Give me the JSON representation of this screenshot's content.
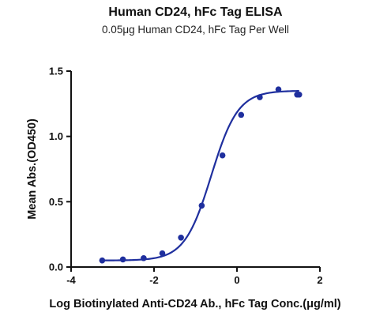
{
  "chart_data": {
    "type": "scatter",
    "title": "Human CD24, hFc Tag ELISA",
    "subtitle": "0.05μg Human CD24, hFc Tag Per Well",
    "xlabel": "Log Biotinylated Anti-CD24 Ab., hFc Tag Conc.(μg/ml)",
    "ylabel": "Mean Abs.(OD450)",
    "xlim": [
      -4,
      2
    ],
    "ylim": [
      0,
      1.5
    ],
    "xticks": [
      -4,
      -2,
      0,
      2
    ],
    "yticks": [
      0.0,
      0.5,
      1.0,
      1.5
    ],
    "xtick_labels": [
      "-4",
      "-2",
      "0",
      "2"
    ],
    "ytick_labels": [
      "0.0",
      "0.5",
      "1.0",
      "1.5"
    ],
    "grid": false,
    "series": [
      {
        "x": [
          -3.25,
          -2.75,
          -2.25,
          -1.8,
          -1.35,
          -0.85,
          -0.35,
          0.1,
          0.55,
          1.0,
          1.45,
          1.5
        ],
        "y": [
          0.05,
          0.058,
          0.068,
          0.105,
          0.225,
          0.47,
          0.855,
          1.165,
          1.3,
          1.36,
          1.32,
          1.32
        ],
        "color": "#1f2f9e"
      }
    ],
    "fit_curve": {
      "model": "4PL",
      "bottom": 0.05,
      "top": 1.35,
      "log_ec50": -0.62,
      "hill": 1.35,
      "x_range": [
        -3.25,
        1.5
      ],
      "color": "#1f2f9e"
    }
  }
}
